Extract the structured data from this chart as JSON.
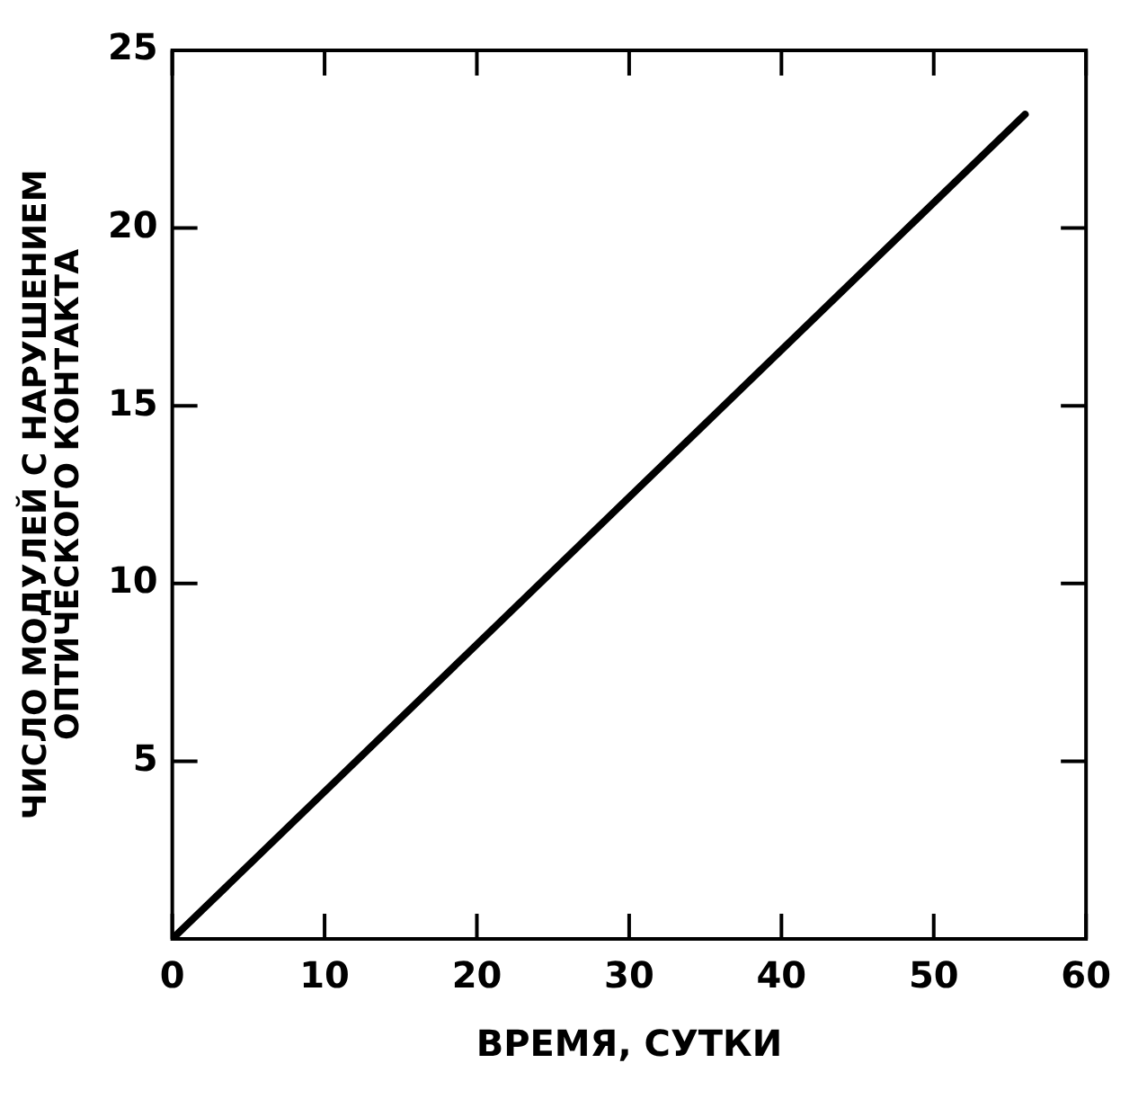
{
  "chart_data": {
    "type": "line",
    "xlabel": "ВРЕМЯ, СУТКИ",
    "ylabel": "ЧИСЛО МОДУЛЕЙ С НАРУШЕНИЕМ\nОПТИЧЕСКОГО КОНТАКТА",
    "series": [
      {
        "x": [
          0,
          56
        ],
        "values": [
          0,
          23.2
        ],
        "color": "#000000"
      }
    ],
    "xlim": [
      0,
      60
    ],
    "xticks": [
      0,
      10,
      20,
      30,
      40,
      50,
      60
    ],
    "ylim": [
      0,
      25
    ],
    "yticks": [
      5,
      10,
      15,
      20,
      25
    ],
    "grid": false,
    "legend": false,
    "marker": "none",
    "line_style": "solid"
  }
}
